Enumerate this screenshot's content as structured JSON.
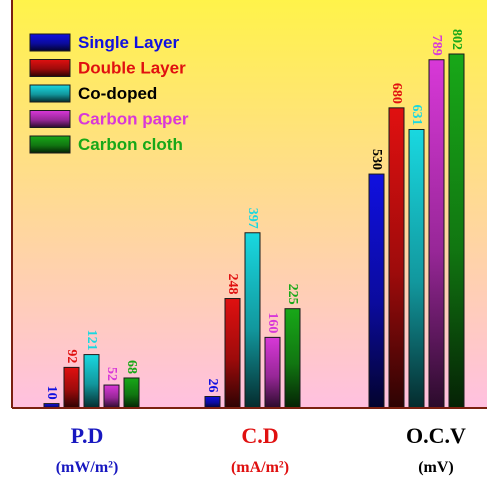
{
  "chart_data": {
    "type": "bar",
    "categories": [
      "P.D",
      "C.D",
      "O.C.V"
    ],
    "units": [
      "(mW/m²)",
      "(mA/m²)",
      "(mV)"
    ],
    "series": [
      {
        "name": "Single Layer",
        "values": [
          10,
          26,
          530
        ]
      },
      {
        "name": "Double Layer",
        "values": [
          92,
          248,
          680
        ]
      },
      {
        "name": "Co-doped",
        "values": [
          121,
          397,
          631
        ]
      },
      {
        "name": "Carbon paper",
        "values": [
          52,
          160,
          789
        ]
      },
      {
        "name": "Carbon cloth",
        "values": [
          68,
          225,
          802
        ]
      }
    ],
    "legend_position": "top-left",
    "grid": false
  },
  "colors": {
    "series": [
      "#1010e0",
      "#e01010",
      "#19d8e0",
      "#d838d8",
      "#18a818"
    ],
    "category_labels": [
      "#1818c0",
      "#e01010",
      "#000000"
    ],
    "unit_labels": [
      "#1818c0",
      "#e01010",
      "#000000"
    ],
    "background_top": "#fff34a",
    "background_bottom": "#ffc0e0"
  }
}
